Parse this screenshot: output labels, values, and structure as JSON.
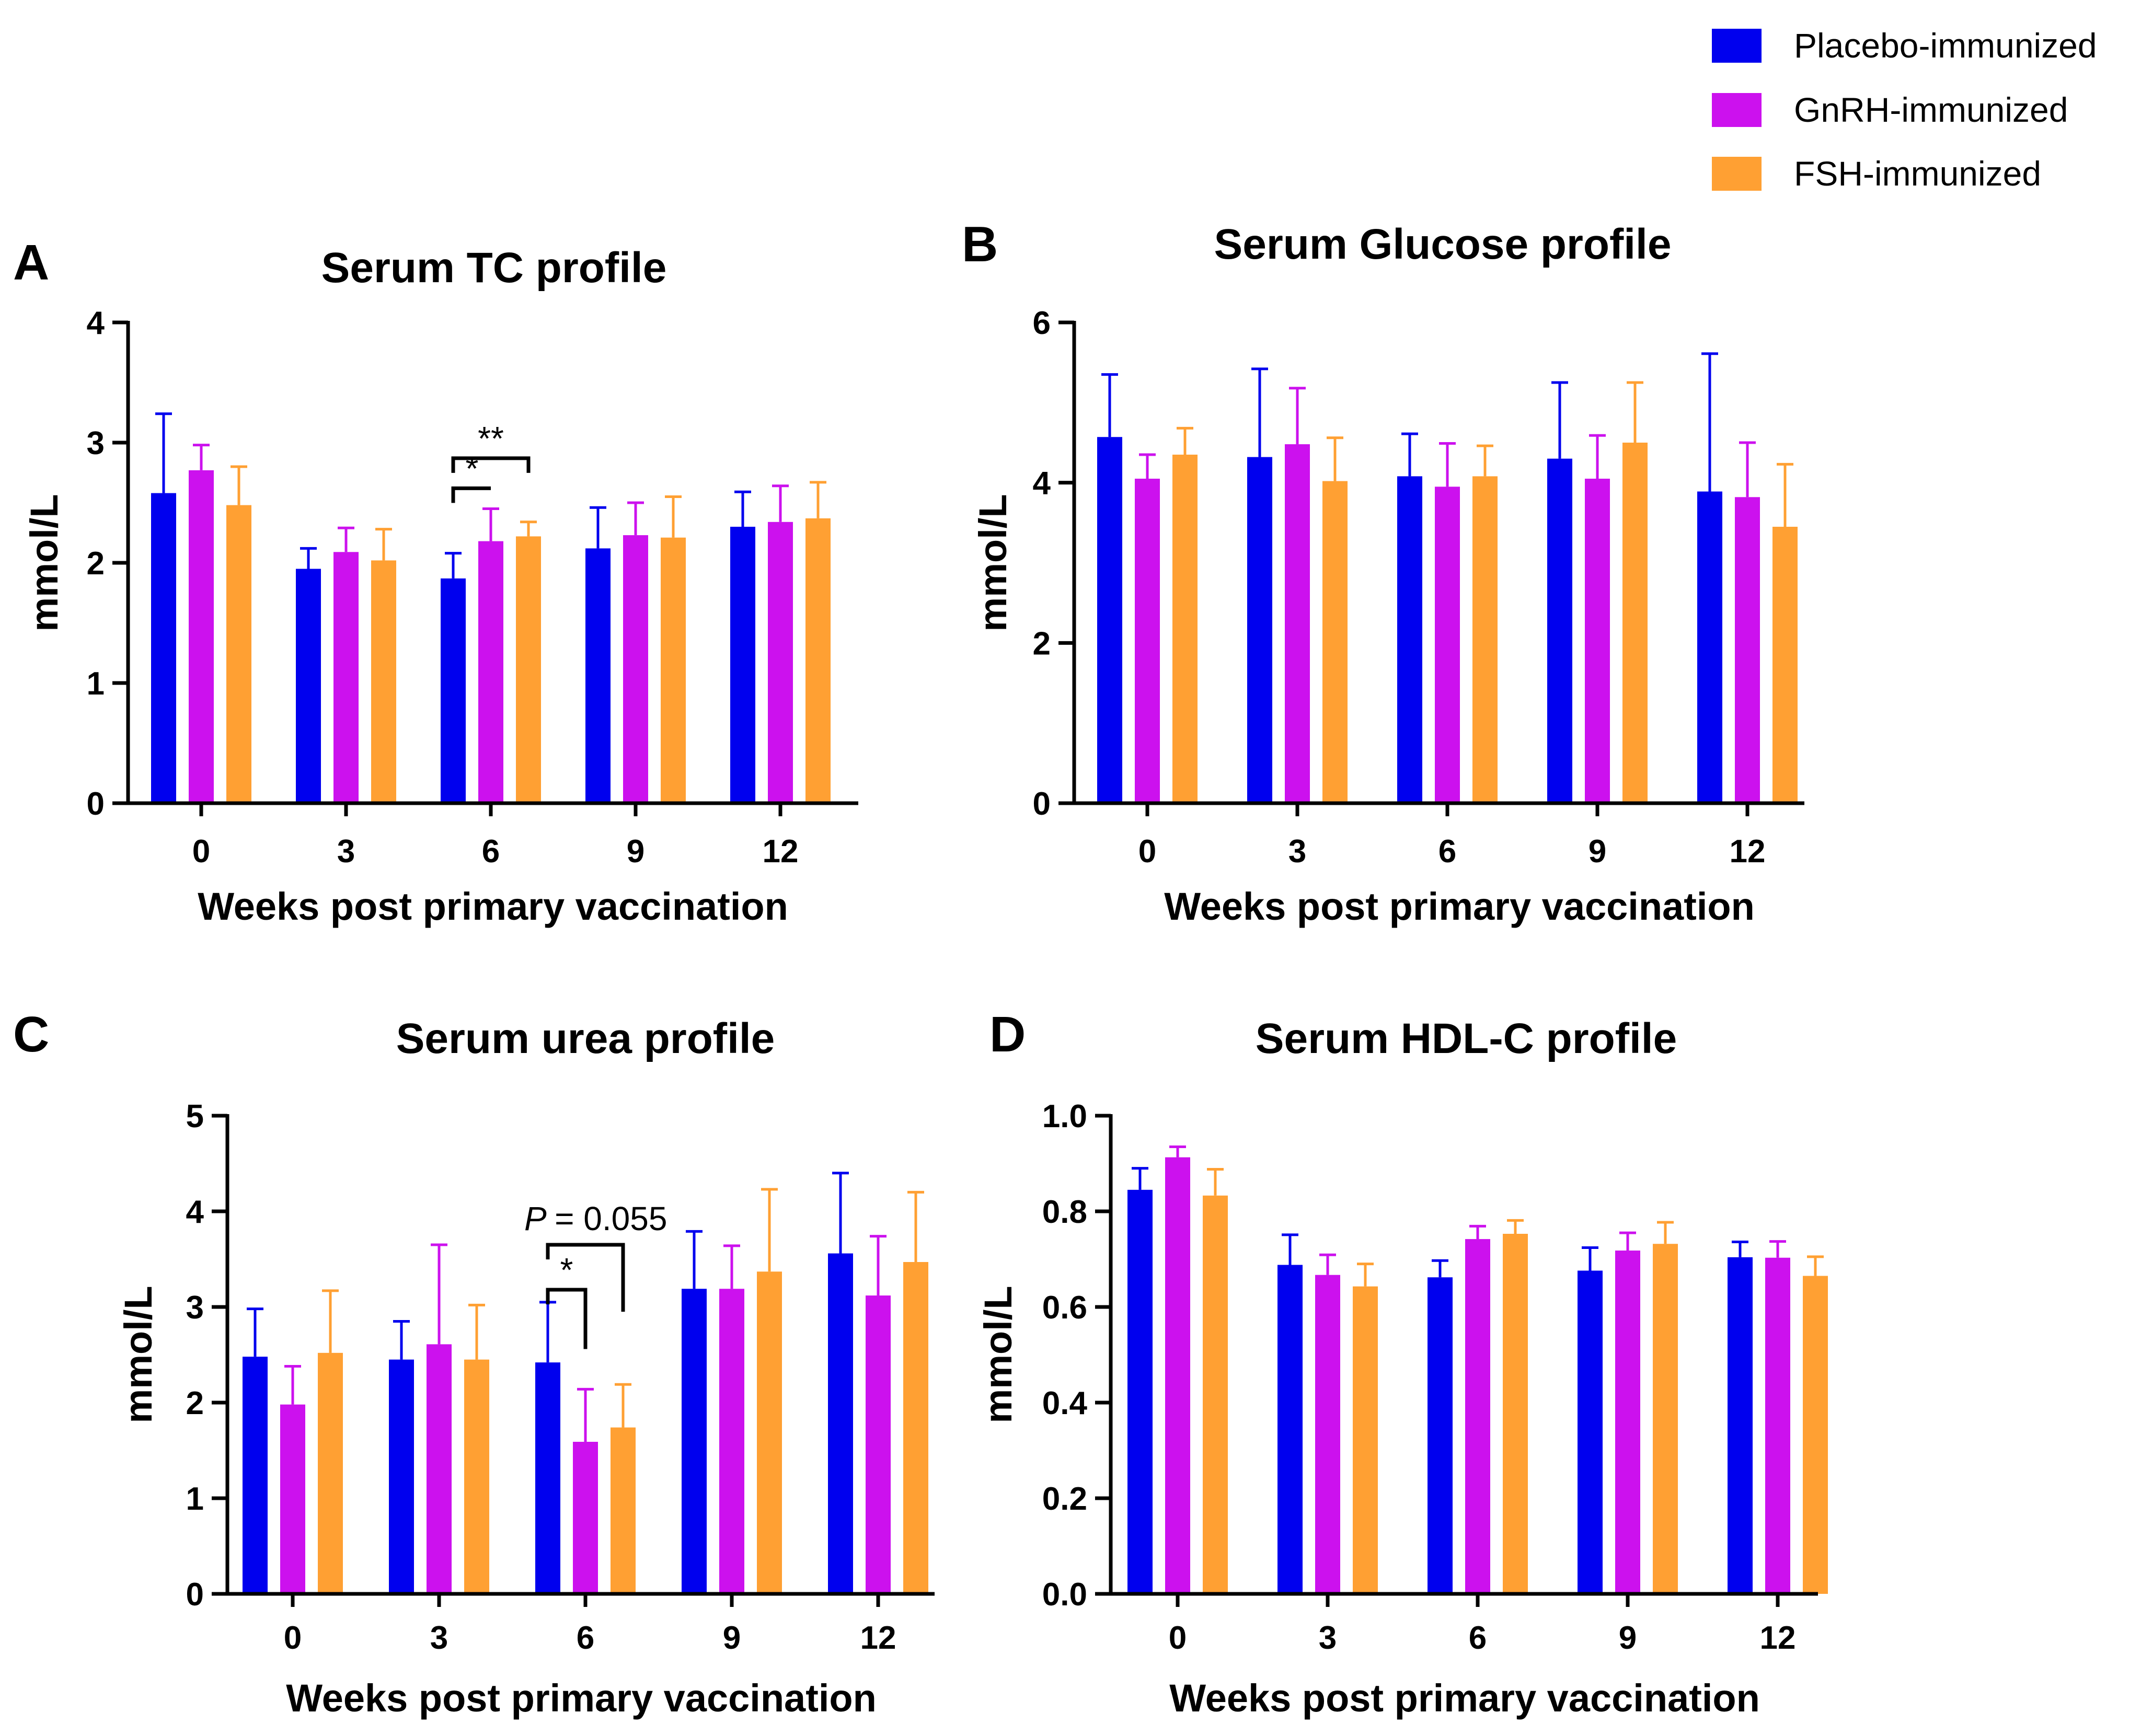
{
  "legend": [
    {
      "name": "Placebo-immunized",
      "color": "#0000ee"
    },
    {
      "name": "GnRH-immunized",
      "color": "#cc11ee"
    },
    {
      "name": "FSH-immunized",
      "color": "#ffa033"
    }
  ],
  "chart_data": [
    {
      "type": "bar",
      "panel": "A",
      "title": "Serum TC profile",
      "xlabel": "Weeks post primary vaccination",
      "ylabel": "mmol/L",
      "ylim": [
        0,
        4
      ],
      "yticks": [
        "0",
        "1",
        "2",
        "3",
        "4"
      ],
      "categories": [
        "0",
        "3",
        "6",
        "9",
        "12"
      ],
      "series": [
        {
          "name": "Placebo-immunized",
          "values": [
            2.58,
            1.95,
            1.87,
            2.12,
            2.3
          ],
          "errors": [
            0.66,
            0.17,
            0.21,
            0.34,
            0.29
          ]
        },
        {
          "name": "GnRH-immunized",
          "values": [
            2.77,
            2.09,
            2.18,
            2.23,
            2.34
          ],
          "errors": [
            0.21,
            0.2,
            0.27,
            0.27,
            0.3
          ]
        },
        {
          "name": "FSH-immunized",
          "values": [
            2.48,
            2.02,
            2.22,
            2.21,
            2.37
          ],
          "errors": [
            0.32,
            0.26,
            0.12,
            0.34,
            0.3
          ]
        }
      ],
      "annotations": [
        {
          "label": "*",
          "category": 2,
          "from": 0,
          "to": 1,
          "level": 2.62,
          "legs": "left"
        },
        {
          "label": "**",
          "category": 2,
          "from": 0,
          "to": 2,
          "level": 2.87,
          "legs": "both"
        }
      ]
    },
    {
      "type": "bar",
      "panel": "B",
      "title": "Serum Glucose profile",
      "xlabel": "Weeks post primary vaccination",
      "ylabel": "mmol/L",
      "ylim": [
        0,
        6
      ],
      "yticks": [
        "0",
        "2",
        "4",
        "6"
      ],
      "categories": [
        "0",
        "3",
        "6",
        "9",
        "12"
      ],
      "series": [
        {
          "name": "Placebo-immunized",
          "values": [
            4.57,
            4.32,
            4.08,
            4.3,
            3.89
          ],
          "errors": [
            0.78,
            1.1,
            0.53,
            0.95,
            1.72
          ]
        },
        {
          "name": "GnRH-immunized",
          "values": [
            4.05,
            4.48,
            3.95,
            4.05,
            3.82
          ],
          "errors": [
            0.3,
            0.7,
            0.54,
            0.54,
            0.68
          ]
        },
        {
          "name": "FSH-immunized",
          "values": [
            4.35,
            4.02,
            4.08,
            4.5,
            3.45
          ],
          "errors": [
            0.33,
            0.54,
            0.38,
            0.75,
            0.78
          ]
        }
      ],
      "annotations": []
    },
    {
      "type": "bar",
      "panel": "C",
      "title": "Serum urea profile",
      "xlabel": "Weeks post primary vaccination",
      "ylabel": "mmol/L",
      "ylim": [
        0,
        5
      ],
      "yticks": [
        "0",
        "1",
        "2",
        "3",
        "4",
        "5"
      ],
      "categories": [
        "0",
        "3",
        "6",
        "9",
        "12"
      ],
      "series": [
        {
          "name": "Placebo-immunized",
          "values": [
            2.48,
            2.45,
            2.42,
            3.19,
            3.56
          ],
          "errors": [
            0.5,
            0.4,
            0.63,
            0.6,
            0.84
          ]
        },
        {
          "name": "GnRH-immunized",
          "values": [
            1.98,
            2.61,
            1.59,
            3.19,
            3.12
          ],
          "errors": [
            0.4,
            1.04,
            0.55,
            0.45,
            0.62
          ]
        },
        {
          "name": "FSH-immunized",
          "values": [
            2.52,
            2.45,
            1.74,
            3.37,
            3.47
          ],
          "errors": [
            0.65,
            0.57,
            0.45,
            0.86,
            0.73
          ]
        }
      ],
      "annotations": [
        {
          "label": "*",
          "category": 2,
          "from": 0,
          "to": 1,
          "level": 3.18,
          "legs": "right",
          "right_leg_to": 2.56
        },
        {
          "label": "= 0.055",
          "prefix": "P",
          "category": 2,
          "from": 0,
          "to": 2,
          "level": 3.65,
          "legs": "right",
          "right_leg_to": 2.95
        }
      ]
    },
    {
      "type": "bar",
      "panel": "D",
      "title": "Serum HDL-C profile",
      "xlabel": "Weeks post primary vaccination",
      "ylabel": "mmol/L",
      "ylim": [
        0,
        1.0
      ],
      "yticks": [
        "0.0",
        "0.2",
        "0.4",
        "0.6",
        "0.8",
        "1.0"
      ],
      "categories": [
        "0",
        "3",
        "6",
        "9",
        "12"
      ],
      "series": [
        {
          "name": "Placebo-immunized",
          "values": [
            0.845,
            0.688,
            0.662,
            0.676,
            0.704
          ],
          "errors": [
            0.045,
            0.063,
            0.035,
            0.048,
            0.032
          ]
        },
        {
          "name": "GnRH-immunized",
          "values": [
            0.913,
            0.667,
            0.742,
            0.718,
            0.703
          ],
          "errors": [
            0.022,
            0.042,
            0.027,
            0.037,
            0.034
          ]
        },
        {
          "name": "FSH-immunized",
          "values": [
            0.833,
            0.643,
            0.753,
            0.732,
            0.665
          ],
          "errors": [
            0.055,
            0.047,
            0.028,
            0.045,
            0.04
          ]
        }
      ],
      "annotations": []
    }
  ]
}
